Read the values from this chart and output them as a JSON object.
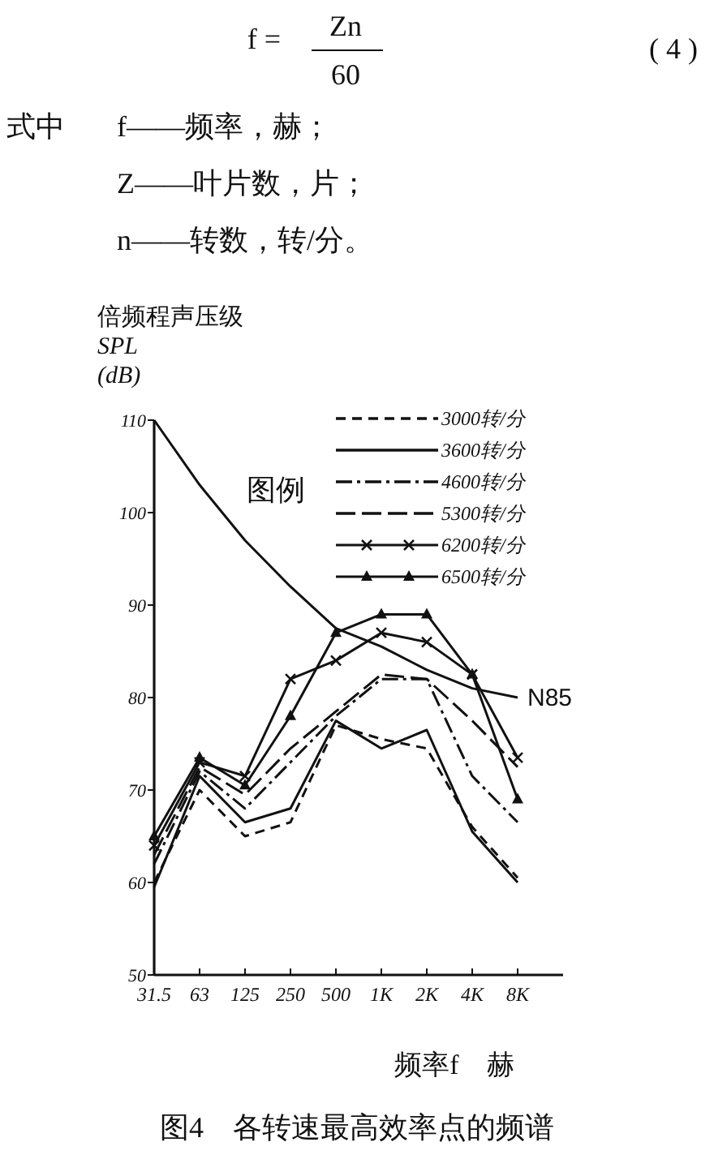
{
  "chart_data": {
    "type": "line",
    "title": "图4　各转速最高效率点的频谱",
    "ylabel": "倍频程声压级\nSPL\n(dB)",
    "xlabel": "频率f　赫",
    "legend_title": "图例",
    "annotations": [
      "f =",
      "Zn",
      "60",
      "( 4 )",
      "式中",
      "f——频率，赫；",
      "Z——叶片数，片；",
      "n——转数，转/分。"
    ],
    "categories": [
      "31.5",
      "63",
      "125",
      "250",
      "500",
      "1K",
      "2K",
      "4K",
      "8K"
    ],
    "ylim": [
      50,
      110
    ],
    "yticks": [
      50,
      60,
      70,
      80,
      90,
      100,
      110
    ],
    "legend": "top right",
    "grid": false,
    "series": [
      {
        "name": "3000转/分",
        "color": "#111111",
        "line_style": "dashed",
        "values": [
          60,
          70,
          65,
          66.5,
          77,
          75.5,
          74.5,
          66,
          60.5
        ]
      },
      {
        "name": "3600转/分",
        "color": "#111111",
        "line_style": "solid",
        "values": [
          59.5,
          71.5,
          66.5,
          68,
          77.5,
          74.5,
          76.5,
          65.5,
          60
        ]
      },
      {
        "name": "4600转/分",
        "color": "#111111",
        "line_style": "dashdot",
        "values": [
          62,
          72,
          68,
          73,
          78,
          82,
          82,
          71.5,
          66.5
        ]
      },
      {
        "name": "5300转/分",
        "color": "#111111",
        "line_style": "longdash",
        "values": [
          63,
          72.5,
          69.5,
          74.5,
          78.5,
          82.5,
          82,
          77.5,
          72.5
        ]
      },
      {
        "name": "6200转/分",
        "color": "#111111",
        "line_style": "solid",
        "marker": "cross",
        "values": [
          64,
          73,
          71.5,
          82,
          84,
          87,
          86,
          82.5,
          73.5
        ]
      },
      {
        "name": "6500转/分",
        "color": "#111111",
        "line_style": "solid",
        "marker": "triangle",
        "values": [
          65,
          73.5,
          70.5,
          78,
          87,
          89,
          89,
          82.5,
          69
        ]
      },
      {
        "name": "N85",
        "color": "#111111",
        "line_style": "solid",
        "values": [
          110,
          103,
          97,
          92,
          87.5,
          85.5,
          83,
          81,
          80
        ]
      }
    ]
  }
}
